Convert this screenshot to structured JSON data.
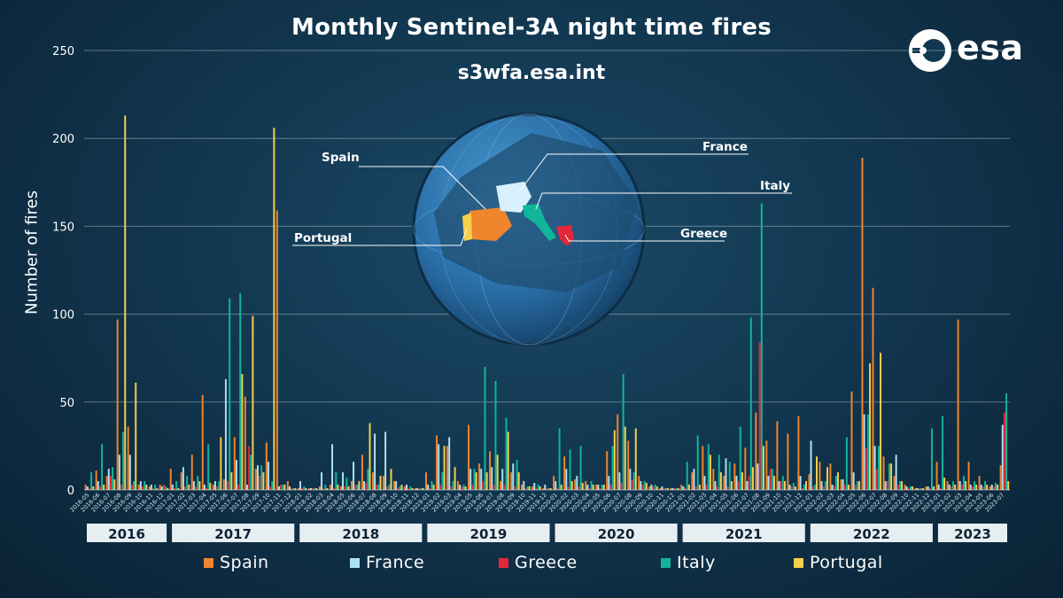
{
  "title": "Monthly Sentinel-3A night time fires",
  "subtitle": "s3wfa.esa.int",
  "logo_text": "esa",
  "globe_labels": {
    "spain": "Spain",
    "france": "France",
    "italy": "Italy",
    "portugal": "Portugal",
    "greece": "Greece"
  },
  "chart_data": {
    "type": "bar",
    "title": "Monthly Sentinel-3A night time fires",
    "ylabel": "Number of fires",
    "xlabel": "",
    "ylim": [
      0,
      250
    ],
    "yticks": [
      0,
      50,
      100,
      150,
      200,
      250
    ],
    "grid": true,
    "legend_position": "bottom",
    "categories": [
      "2016-05",
      "2016-06",
      "2016-07",
      "2016-08",
      "2016-09",
      "2016-10",
      "2016-11",
      "2016-12",
      "2017-01",
      "2017-02",
      "2017-03",
      "2017-04",
      "2017-05",
      "2017-06",
      "2017-07",
      "2017-08",
      "2017-09",
      "2017-10",
      "2017-11",
      "2017-12",
      "2018-01",
      "2018-02",
      "2018-03",
      "2018-04",
      "2018-05",
      "2018-06",
      "2018-07",
      "2018-08",
      "2018-09",
      "2018-10",
      "2018-11",
      "2018-12",
      "2019-01",
      "2019-02",
      "2019-03",
      "2019-04",
      "2019-05",
      "2019-06",
      "2019-07",
      "2019-08",
      "2019-09",
      "2019-10",
      "2019-11",
      "2019-12",
      "2020-01",
      "2020-02",
      "2020-03",
      "2020-04",
      "2020-05",
      "2020-06",
      "2020-07",
      "2020-08",
      "2020-09",
      "2020-10",
      "2020-11",
      "2020-12",
      "2021-01",
      "2021-02",
      "2021-03",
      "2021-04",
      "2021-05",
      "2021-06",
      "2021-07",
      "2021-08",
      "2021-09",
      "2021-10",
      "2021-11",
      "2021-12",
      "2022-01",
      "2022-02",
      "2022-03",
      "2022-04",
      "2022-05",
      "2022-06",
      "2022-07",
      "2022-08",
      "2022-09",
      "2022-10",
      "2022-11",
      "2022-12",
      "2023-01",
      "2023-02",
      "2023-03",
      "2023-04",
      "2023-05",
      "2023-06",
      "2023-07"
    ],
    "year_groups": [
      {
        "label": "2016",
        "count": 8
      },
      {
        "label": "2017",
        "count": 12
      },
      {
        "label": "2018",
        "count": 12
      },
      {
        "label": "2019",
        "count": 12
      },
      {
        "label": "2020",
        "count": 12
      },
      {
        "label": "2021",
        "count": 12
      },
      {
        "label": "2022",
        "count": 12
      },
      {
        "label": "2023",
        "count": 7
      }
    ],
    "series": [
      {
        "name": "Spain",
        "color": "#f0852d",
        "values": [
          3,
          11,
          8,
          97,
          36,
          3,
          2,
          3,
          12,
          10,
          20,
          54,
          3,
          6,
          30,
          53,
          12,
          27,
          159,
          5,
          1,
          1,
          2,
          3,
          2,
          5,
          20,
          10,
          8,
          5,
          2,
          1,
          10,
          31,
          25,
          5,
          37,
          15,
          22,
          5,
          10,
          3,
          2,
          1,
          8,
          19,
          6,
          5,
          3,
          22,
          43,
          28,
          8,
          2,
          1,
          1,
          3,
          10,
          25,
          12,
          8,
          15,
          24,
          44,
          28,
          39,
          32,
          42,
          9,
          16,
          15,
          6,
          56,
          189,
          115,
          19,
          8,
          3,
          1,
          2,
          16,
          5,
          97,
          16,
          8,
          2,
          14
        ]
      },
      {
        "name": "France",
        "color": "#aee2f5",
        "values": [
          2,
          5,
          12,
          20,
          20,
          5,
          3,
          2,
          3,
          13,
          5,
          3,
          5,
          63,
          17,
          3,
          14,
          16,
          2,
          2,
          5,
          1,
          10,
          26,
          10,
          16,
          5,
          32,
          33,
          5,
          3,
          1,
          3,
          26,
          30,
          3,
          12,
          12,
          13,
          12,
          15,
          5,
          4,
          3,
          5,
          12,
          8,
          3,
          3,
          8,
          10,
          12,
          5,
          3,
          2,
          1,
          2,
          12,
          8,
          5,
          18,
          8,
          5,
          15,
          8,
          5,
          3,
          8,
          28,
          5,
          3,
          6,
          10,
          43,
          25,
          5,
          20,
          2,
          1,
          2,
          3,
          3,
          5,
          3,
          3,
          3,
          37
        ]
      },
      {
        "name": "Greece",
        "color": "#e3283a",
        "values": [
          1,
          2,
          8,
          3,
          3,
          2,
          1,
          3,
          1,
          2,
          2,
          1,
          2,
          5,
          3,
          25,
          8,
          2,
          3,
          1,
          1,
          1,
          1,
          1,
          2,
          3,
          4,
          3,
          2,
          1,
          1,
          1,
          1,
          3,
          2,
          2,
          3,
          5,
          3,
          3,
          2,
          1,
          1,
          1,
          1,
          2,
          2,
          1,
          1,
          3,
          4,
          6,
          3,
          2,
          1,
          1,
          1,
          2,
          3,
          2,
          2,
          5,
          8,
          84,
          12,
          5,
          2,
          1,
          2,
          2,
          2,
          3,
          3,
          24,
          12,
          5,
          3,
          1,
          1,
          1,
          1,
          2,
          3,
          2,
          2,
          2,
          44
        ]
      },
      {
        "name": "Italy",
        "color": "#12b59a",
        "values": [
          10,
          26,
          13,
          33,
          5,
          5,
          3,
          2,
          5,
          8,
          8,
          26,
          5,
          109,
          112,
          20,
          14,
          5,
          3,
          1,
          2,
          1,
          3,
          10,
          7,
          3,
          12,
          3,
          3,
          2,
          2,
          1,
          5,
          10,
          5,
          3,
          12,
          70,
          62,
          41,
          17,
          2,
          3,
          1,
          35,
          23,
          25,
          5,
          3,
          25,
          66,
          10,
          5,
          3,
          1,
          1,
          16,
          31,
          26,
          20,
          16,
          36,
          98,
          163,
          12,
          8,
          4,
          3,
          3,
          5,
          8,
          30,
          5,
          43,
          25,
          15,
          5,
          2,
          1,
          35,
          42,
          5,
          8,
          5,
          5,
          4,
          55
        ]
      },
      {
        "name": "Portugal",
        "color": "#f6cf4b",
        "values": [
          2,
          3,
          6,
          213,
          61,
          3,
          1,
          1,
          1,
          3,
          5,
          4,
          30,
          10,
          66,
          99,
          10,
          206,
          3,
          1,
          1,
          1,
          1,
          3,
          2,
          5,
          38,
          8,
          12,
          3,
          1,
          1,
          3,
          25,
          13,
          2,
          10,
          10,
          20,
          33,
          10,
          2,
          2,
          1,
          3,
          5,
          4,
          3,
          3,
          34,
          36,
          35,
          4,
          2,
          1,
          1,
          3,
          3,
          20,
          10,
          5,
          10,
          13,
          25,
          8,
          5,
          2,
          5,
          19,
          13,
          10,
          3,
          5,
          72,
          78,
          15,
          5,
          2,
          1,
          2,
          7,
          3,
          5,
          3,
          3,
          3,
          5
        ]
      }
    ]
  }
}
